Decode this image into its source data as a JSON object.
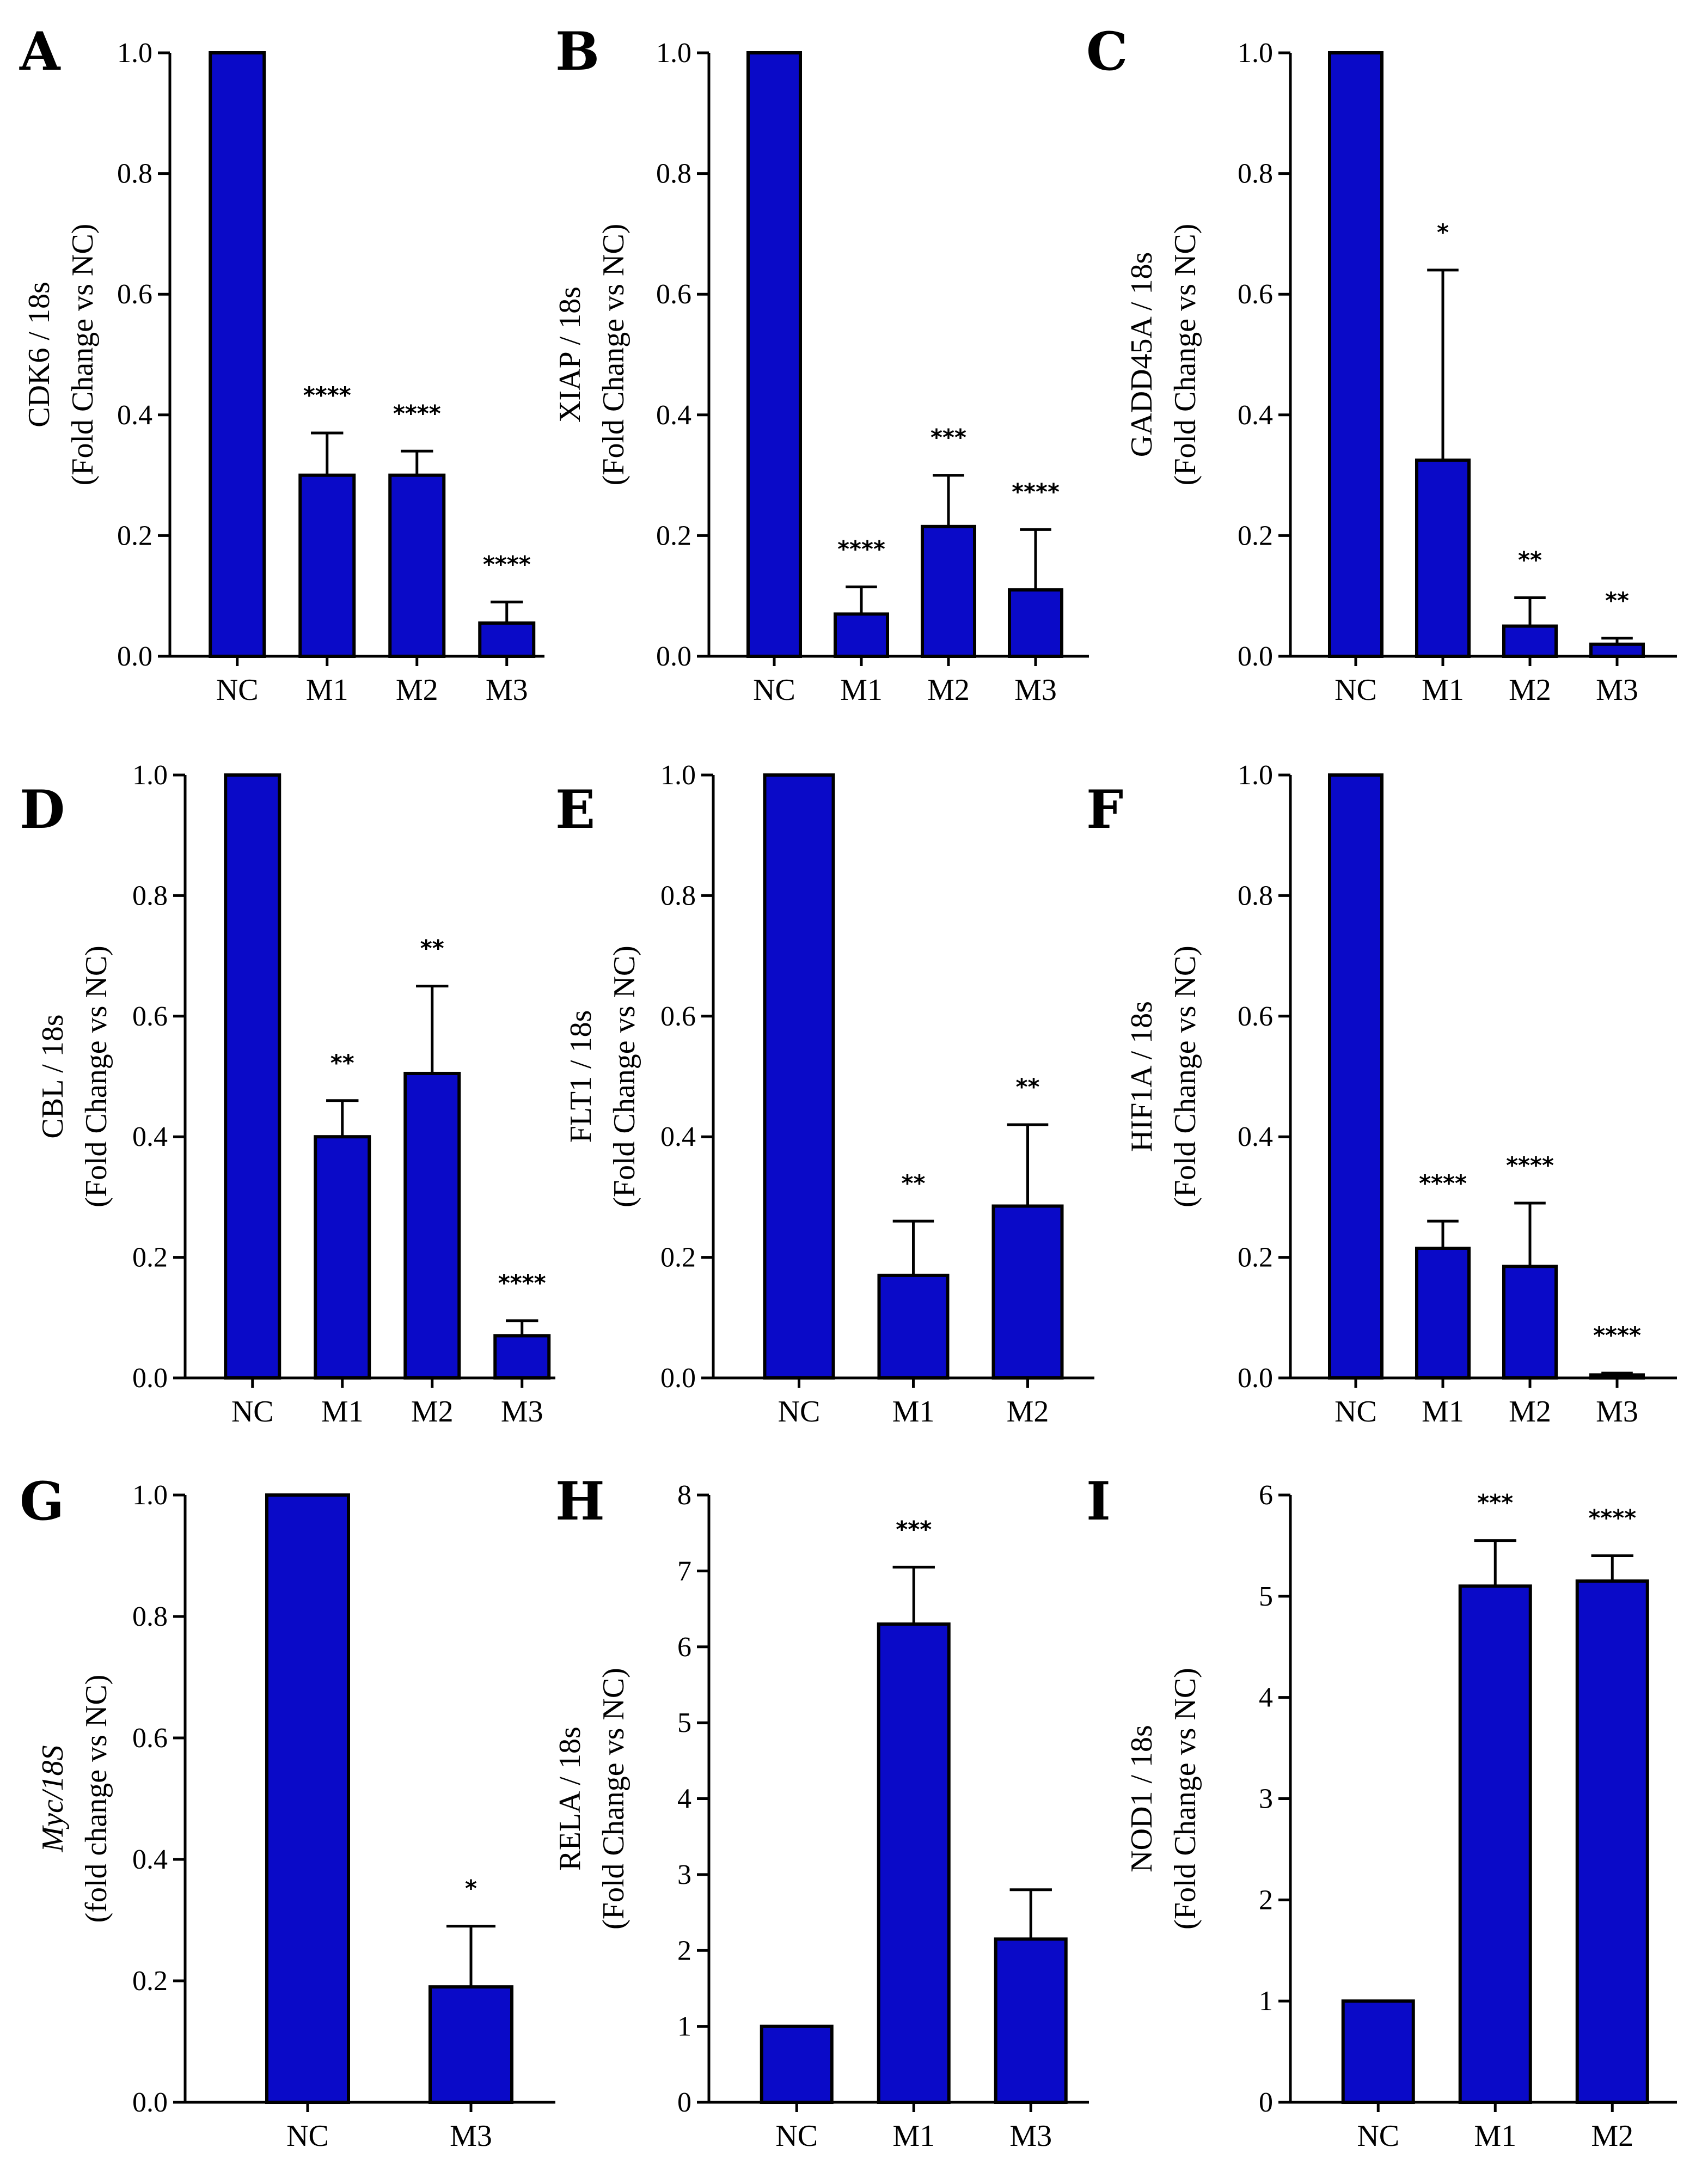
{
  "colors": {
    "bar": "#0a0ac8",
    "stroke": "#000000"
  },
  "chart_data": [
    {
      "panel": "A",
      "type": "bar",
      "ylabel": [
        "CDK6 / 18s",
        "(Fold Change vs NC)"
      ],
      "ylim": [
        0,
        1.0
      ],
      "yticks": [
        0.0,
        0.2,
        0.4,
        0.6,
        0.8,
        1.0
      ],
      "ytick_labels": [
        "0.0",
        "0.2",
        "0.4",
        "0.6",
        "0.8",
        "1.0"
      ],
      "categories": [
        "NC",
        "M1",
        "M2",
        "M3"
      ],
      "values": [
        1.0,
        0.3,
        0.3,
        0.055
      ],
      "errors": [
        0,
        0.07,
        0.04,
        0.035
      ],
      "significance": [
        "",
        "****",
        "****",
        "****"
      ]
    },
    {
      "panel": "B",
      "type": "bar",
      "ylabel": [
        "XIAP / 18s",
        "(Fold Change vs NC)"
      ],
      "ylim": [
        0,
        1.0
      ],
      "yticks": [
        0.0,
        0.2,
        0.4,
        0.6,
        0.8,
        1.0
      ],
      "ytick_labels": [
        "0.0",
        "0.2",
        "0.4",
        "0.6",
        "0.8",
        "1.0"
      ],
      "categories": [
        "NC",
        "M1",
        "M2",
        "M3"
      ],
      "values": [
        1.0,
        0.07,
        0.215,
        0.11
      ],
      "errors": [
        0,
        0.045,
        0.085,
        0.1
      ],
      "significance": [
        "",
        "****",
        "***",
        "****"
      ]
    },
    {
      "panel": "C",
      "type": "bar",
      "ylabel": [
        "GADD45A / 18s",
        "(Fold Change vs NC)"
      ],
      "ylim": [
        0,
        1.0
      ],
      "yticks": [
        0.0,
        0.2,
        0.4,
        0.6,
        0.8,
        1.0
      ],
      "ytick_labels": [
        "0.0",
        "0.2",
        "0.4",
        "0.6",
        "0.8",
        "1.0"
      ],
      "categories": [
        "NC",
        "M1",
        "M2",
        "M3"
      ],
      "values": [
        1.0,
        0.325,
        0.05,
        0.02
      ],
      "errors": [
        0,
        0.315,
        0.047,
        0.01
      ],
      "significance": [
        "",
        "*",
        "**",
        "**"
      ]
    },
    {
      "panel": "D",
      "type": "bar",
      "ylabel": [
        "CBL / 18s",
        "(Fold Change vs NC)"
      ],
      "ylim": [
        0,
        1.0
      ],
      "yticks": [
        0.0,
        0.2,
        0.4,
        0.6,
        0.8,
        1.0
      ],
      "ytick_labels": [
        "0.0",
        "0.2",
        "0.4",
        "0.6",
        "0.8",
        "1.0"
      ],
      "categories": [
        "NC",
        "M1",
        "M2",
        "M3"
      ],
      "values": [
        1.0,
        0.4,
        0.505,
        0.07
      ],
      "errors": [
        0,
        0.06,
        0.145,
        0.025
      ],
      "significance": [
        "",
        "**",
        "**",
        "****"
      ]
    },
    {
      "panel": "E",
      "type": "bar",
      "ylabel": [
        "FLT1 / 18s",
        "(Fold Change vs NC)"
      ],
      "ylim": [
        0,
        1.0
      ],
      "yticks": [
        0.0,
        0.2,
        0.4,
        0.6,
        0.8,
        1.0
      ],
      "ytick_labels": [
        "0.0",
        "0.2",
        "0.4",
        "0.6",
        "0.8",
        "1.0"
      ],
      "categories": [
        "NC",
        "M1",
        "M2"
      ],
      "values": [
        1.0,
        0.17,
        0.285
      ],
      "errors": [
        0,
        0.09,
        0.135
      ],
      "significance": [
        "",
        "**",
        "**"
      ]
    },
    {
      "panel": "F",
      "type": "bar",
      "ylabel": [
        "HIF1A / 18s",
        "(Fold Change vs NC)"
      ],
      "ylim": [
        0,
        1.0
      ],
      "yticks": [
        0.0,
        0.2,
        0.4,
        0.6,
        0.8,
        1.0
      ],
      "ytick_labels": [
        "0.0",
        "0.2",
        "0.4",
        "0.6",
        "0.8",
        "1.0"
      ],
      "categories": [
        "NC",
        "M1",
        "M2",
        "M3"
      ],
      "values": [
        1.0,
        0.215,
        0.185,
        0.005
      ],
      "errors": [
        0,
        0.045,
        0.105,
        0.003
      ],
      "significance": [
        "",
        "****",
        "****",
        "****"
      ]
    },
    {
      "panel": "G",
      "type": "bar",
      "ylabel": [
        "Myc/18S",
        "(fold change vs NC)"
      ],
      "ylabel_italic_first": true,
      "ylim": [
        0,
        1.0
      ],
      "yticks": [
        0.0,
        0.2,
        0.4,
        0.6,
        0.8,
        1.0
      ],
      "ytick_labels": [
        "0.0",
        "0.2",
        "0.4",
        "0.6",
        "0.8",
        "1.0"
      ],
      "categories": [
        "NC",
        "M3"
      ],
      "values": [
        1.0,
        0.19
      ],
      "errors": [
        0,
        0.1
      ],
      "significance": [
        "",
        "*"
      ]
    },
    {
      "panel": "H",
      "type": "bar",
      "ylabel": [
        "RELA / 18s",
        "(Fold Change vs NC)"
      ],
      "ylim": [
        0,
        8
      ],
      "yticks": [
        0,
        1,
        2,
        3,
        4,
        5,
        6,
        7,
        8
      ],
      "ytick_labels": [
        "0",
        "1",
        "2",
        "3",
        "4",
        "5",
        "6",
        "7",
        "8"
      ],
      "categories": [
        "NC",
        "M1",
        "M3"
      ],
      "values": [
        1.0,
        6.3,
        2.15
      ],
      "errors": [
        0,
        0.75,
        0.65
      ],
      "significance": [
        "",
        "***",
        ""
      ]
    },
    {
      "panel": "I",
      "type": "bar",
      "ylabel": [
        "NOD1 / 18s",
        "(Fold Change vs NC)"
      ],
      "ylim": [
        0,
        6
      ],
      "yticks": [
        0,
        1,
        2,
        3,
        4,
        5,
        6
      ],
      "ytick_labels": [
        "0",
        "1",
        "2",
        "3",
        "4",
        "5",
        "6"
      ],
      "categories": [
        "NC",
        "M1",
        "M2"
      ],
      "values": [
        1.0,
        5.1,
        5.15
      ],
      "errors": [
        0,
        0.45,
        0.25
      ],
      "significance": [
        "",
        "***",
        "****"
      ]
    }
  ]
}
